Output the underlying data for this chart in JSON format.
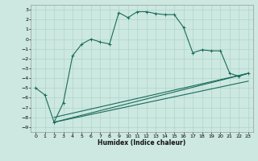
{
  "xlabel": "Humidex (Indice chaleur)",
  "ylabel": "",
  "background_color": "#cce8e0",
  "grid_color": "#aed4cb",
  "line_color": "#1a6b5a",
  "xlim": [
    -0.5,
    23.5
  ],
  "ylim": [
    -9.5,
    3.5
  ],
  "xticks": [
    0,
    1,
    2,
    3,
    4,
    5,
    6,
    7,
    8,
    9,
    10,
    11,
    12,
    13,
    14,
    15,
    16,
    17,
    18,
    19,
    20,
    21,
    22,
    23
  ],
  "yticks": [
    -9,
    -8,
    -7,
    -6,
    -5,
    -4,
    -3,
    -2,
    -1,
    0,
    1,
    2,
    3
  ],
  "line1_x": [
    0,
    1,
    2,
    3,
    4,
    5,
    6,
    7,
    8,
    9,
    10,
    11,
    12,
    13,
    14,
    15,
    16,
    17,
    18,
    19,
    20,
    21,
    22,
    23
  ],
  "line1_y": [
    -5.0,
    -5.7,
    -8.5,
    -6.5,
    -1.7,
    -0.5,
    0.0,
    -0.3,
    -0.5,
    2.7,
    2.2,
    2.8,
    2.8,
    2.6,
    2.5,
    2.5,
    1.2,
    -1.4,
    -1.1,
    -1.2,
    -1.2,
    -3.5,
    -3.8,
    -3.5
  ],
  "line2_x": [
    2,
    23
  ],
  "line2_y": [
    -8.5,
    -3.5
  ],
  "line3_x": [
    2,
    23
  ],
  "line3_y": [
    -8.5,
    -4.3
  ],
  "line4_x": [
    2,
    23
  ],
  "line4_y": [
    -8.0,
    -3.5
  ]
}
